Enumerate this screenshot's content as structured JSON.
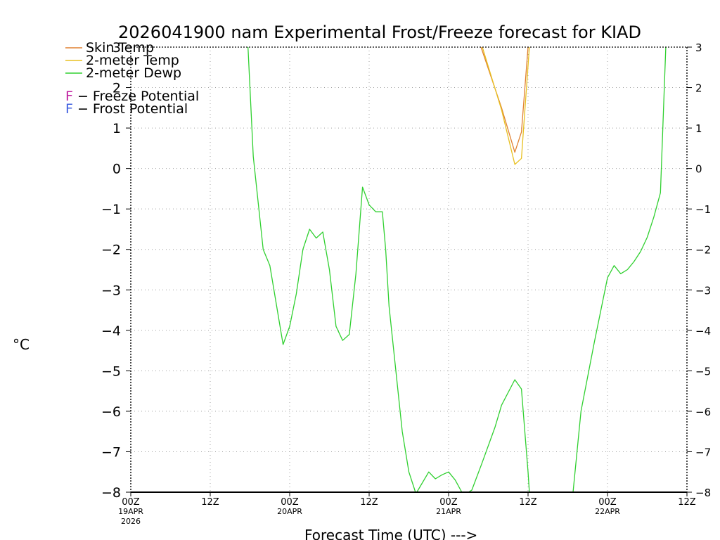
{
  "chart_data": {
    "type": "line",
    "title": "2026041900 nam Experimental Frost/Freeze forecast for KIAD",
    "xlabel": "Forecast Time (UTC) --->",
    "ylabel": "°C",
    "ylim": [
      -8,
      3
    ],
    "xlim": [
      0,
      84
    ],
    "grid": true,
    "y_ticks": [
      3,
      2,
      1,
      0,
      -1,
      -2,
      -3,
      -4,
      -5,
      -6,
      -7,
      -8
    ],
    "y_tick_labels": [
      "3",
      "2",
      "1",
      "0",
      "−1",
      "−2",
      "−3",
      "−4",
      "−5",
      "−6",
      "−7",
      "−8"
    ],
    "x_ticks": [
      {
        "x": 0,
        "label": "00Z",
        "date": "19APR",
        "year": "2026"
      },
      {
        "x": 12,
        "label": "12Z",
        "date": "",
        "year": ""
      },
      {
        "x": 24,
        "label": "00Z",
        "date": "20APR",
        "year": ""
      },
      {
        "x": 36,
        "label": "12Z",
        "date": "",
        "year": ""
      },
      {
        "x": 48,
        "label": "00Z",
        "date": "21APR",
        "year": ""
      },
      {
        "x": 60,
        "label": "12Z",
        "date": "",
        "year": ""
      },
      {
        "x": 72,
        "label": "00Z",
        "date": "22APR",
        "year": ""
      },
      {
        "x": 84,
        "label": "12Z",
        "date": "",
        "year": ""
      }
    ],
    "legend": [
      {
        "label": "Skin Temp",
        "color": "#e08030"
      },
      {
        "label": "2-meter Temp",
        "color": "#e8c020"
      },
      {
        "label": "2-meter Dewp",
        "color": "#30d030"
      }
    ],
    "legend_extra": [
      {
        "glyph": "F",
        "text": " − Freeze Potential",
        "color": "#c020a0"
      },
      {
        "glyph": "F",
        "text": " − Frost Potential",
        "color": "#4060e0"
      }
    ],
    "series": [
      {
        "name": "Skin Temp",
        "color": "#e08030",
        "x": [
          52.9,
          56,
          58,
          59,
          60.0
        ],
        "y": [
          3.0,
          1.5,
          0.4,
          0.9,
          3.0
        ]
      },
      {
        "name": "2-meter Temp",
        "color": "#e8c020",
        "x": [
          53.1,
          56,
          58,
          59,
          60.2
        ],
        "y": [
          3.0,
          1.45,
          0.1,
          0.25,
          3.0
        ]
      },
      {
        "name": "2-meter Dewp",
        "color": "#30d030",
        "x": [
          17.7,
          18.5,
          20,
          21,
          23,
          24,
          25,
          26,
          27,
          28,
          29,
          30,
          31,
          32,
          33,
          34,
          35,
          36,
          37,
          38,
          38.5,
          39,
          41,
          42,
          43,
          43.2,
          45,
          46,
          47,
          48,
          49,
          50,
          51,
          51.5,
          53,
          55,
          56,
          58,
          59,
          60,
          60.2,
          66.8,
          68,
          70,
          72,
          73,
          74,
          75,
          76,
          77,
          78,
          79,
          80,
          80.8
        ],
        "y": [
          3.0,
          0.3,
          -2.0,
          -2.4,
          -4.35,
          -3.9,
          -3.1,
          -2.0,
          -1.5,
          -1.72,
          -1.57,
          -2.5,
          -3.9,
          -4.25,
          -4.1,
          -2.6,
          -0.46,
          -0.9,
          -1.07,
          -1.07,
          -2.0,
          -3.4,
          -6.5,
          -7.5,
          -8.0,
          -8.0,
          -7.5,
          -7.67,
          -7.57,
          -7.5,
          -7.7,
          -8.0,
          -8.0,
          -7.95,
          -7.3,
          -6.4,
          -5.85,
          -5.22,
          -5.45,
          -7.5,
          -8.0,
          -8.0,
          -6.0,
          -4.3,
          -2.7,
          -2.4,
          -2.6,
          -2.5,
          -2.3,
          -2.05,
          -1.7,
          -1.2,
          -0.6,
          3.0
        ]
      }
    ]
  }
}
